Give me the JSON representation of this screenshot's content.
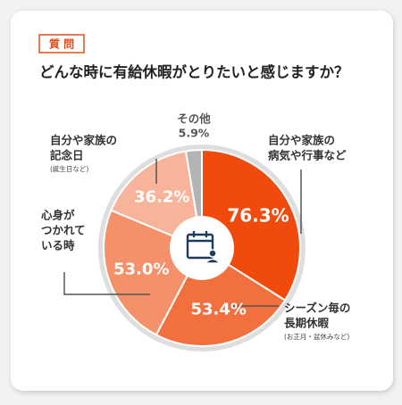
{
  "tag": "質 問",
  "chart_data": {
    "type": "pie",
    "title": "どんな時に有給休暇がとりたいと感じますか？",
    "categories": [
      [
        "自分や家族の",
        "病気や行事など"
      ],
      [
        "シーズン毎の",
        "長期休暇"
      ],
      [
        "心身が",
        "つかれて",
        "いる時"
      ],
      [
        "自分や家族の",
        "記念日"
      ],
      [
        "その他"
      ]
    ],
    "sublabels": [
      null,
      "(お正月・盆休みなど)",
      null,
      "(誕生日など)",
      null
    ],
    "values": [
      76.3,
      53.4,
      53.0,
      36.2,
      5.9
    ],
    "value_labels": [
      "76.3%",
      "53.4%",
      "53.0%",
      "36.2%",
      "5.9%"
    ],
    "colors": [
      "#f04b0c",
      "#f26f3e",
      "#f5916a",
      "#f8b49b",
      "#b4b4b4"
    ]
  }
}
